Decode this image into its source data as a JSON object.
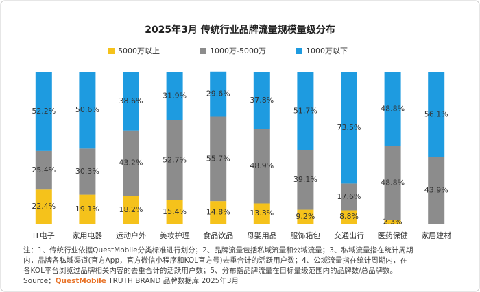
{
  "chart_data": {
    "type": "stacked_bar",
    "title": "2025年3月 传统行业品牌流量规模量级分布",
    "categories": [
      "IT电子",
      "家用电器",
      "运动户外",
      "美妆护理",
      "食品饮品",
      "母婴用品",
      "服饰箱包",
      "交通出行",
      "医药保健",
      "家居建材"
    ],
    "series": [
      {
        "name": "5000万以上",
        "color": "#f5c21b",
        "values": [
          22.4,
          19.1,
          18.2,
          15.4,
          14.8,
          13.3,
          9.2,
          8.8,
          2.3,
          null
        ],
        "value_labels": [
          "22.4%",
          "19.1%",
          "18.2%",
          "15.4%",
          "14.8%",
          "13.3%",
          "9.2%",
          "8.8%",
          "2.3%",
          null
        ]
      },
      {
        "name": "1000万-5000万",
        "color": "#8c8c8c",
        "values": [
          25.4,
          30.3,
          43.2,
          52.7,
          55.7,
          48.9,
          39.1,
          17.6,
          48.8,
          43.9
        ],
        "value_labels": [
          "25.4%",
          "30.3%",
          "43.2%",
          "52.7%",
          "55.7%",
          "48.9%",
          "39.1%",
          "17.6%",
          "48.8%",
          "43.9%"
        ]
      },
      {
        "name": "1000万以下",
        "color": "#1e9be0",
        "values": [
          52.2,
          50.6,
          38.6,
          31.9,
          29.6,
          37.8,
          51.7,
          73.5,
          48.8,
          56.1
        ],
        "value_labels": [
          "52.2%",
          "50.6%",
          "38.6%",
          "31.9%",
          "29.6%",
          "37.8%",
          "51.7%",
          "73.5%",
          "48.8%",
          "56.1%"
        ]
      }
    ],
    "ylim": [
      0,
      100
    ],
    "notes": [
      "注：1、传统行业依据QuestMobile分类标准进行划分；2、品牌流量包括私域流量和公域流量；3、私域流量指在统计周期",
      "内，品牌各私域渠道(官方App，官方微信小程序和KOL官方号)去重合计的活跃用户数；4、公域流量指在统计周期内，在",
      "各KOL平台浏览过品牌相关内容的去重合计的活跃用户数；5、分布指品牌流量在目标量级范围内的品牌数/总品牌数。"
    ],
    "source": [
      "Source：",
      "QuestMobile",
      " TRUTH BRAND 品牌数据库 2025年3月"
    ]
  }
}
